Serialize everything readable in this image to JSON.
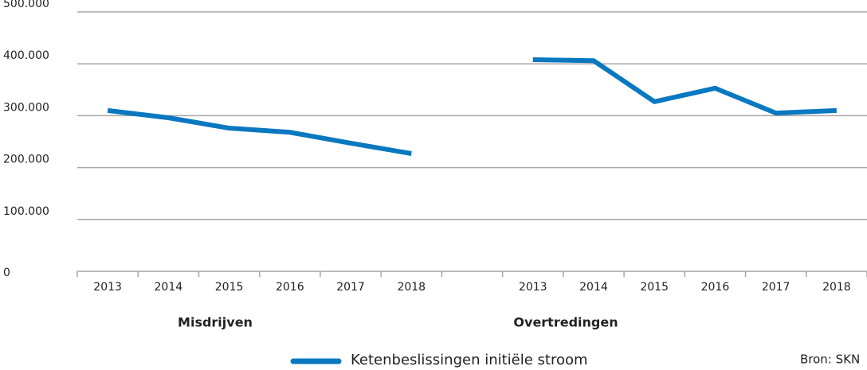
{
  "chart_data": {
    "type": "line",
    "categories": [
      "2013",
      "2014",
      "2015",
      "2016",
      "2017",
      "2018",
      null,
      "2013",
      "2014",
      "2015",
      "2016",
      "2017",
      "2018"
    ],
    "series": [
      {
        "name": "Ketenbeslissingen initiële stroom",
        "color": "#0a78c0",
        "values": [
          310000,
          296000,
          276000,
          268000,
          247000,
          227000,
          null,
          408000,
          406000,
          327000,
          353000,
          305000,
          310000
        ]
      }
    ],
    "group_labels": [
      "Misdrijven",
      "Overtredingen"
    ],
    "source": "Bron: SKN",
    "ylim": [
      0,
      500000
    ],
    "yticks": [
      0,
      {
        "value": 100000,
        "label": "100.000"
      },
      {
        "value": 200000,
        "label": "200.000"
      },
      {
        "value": 300000,
        "label": "300.000"
      },
      {
        "value": 400000,
        "label": "400.000"
      },
      {
        "value": 500000,
        "label": "500.000"
      }
    ],
    "grid": true
  }
}
